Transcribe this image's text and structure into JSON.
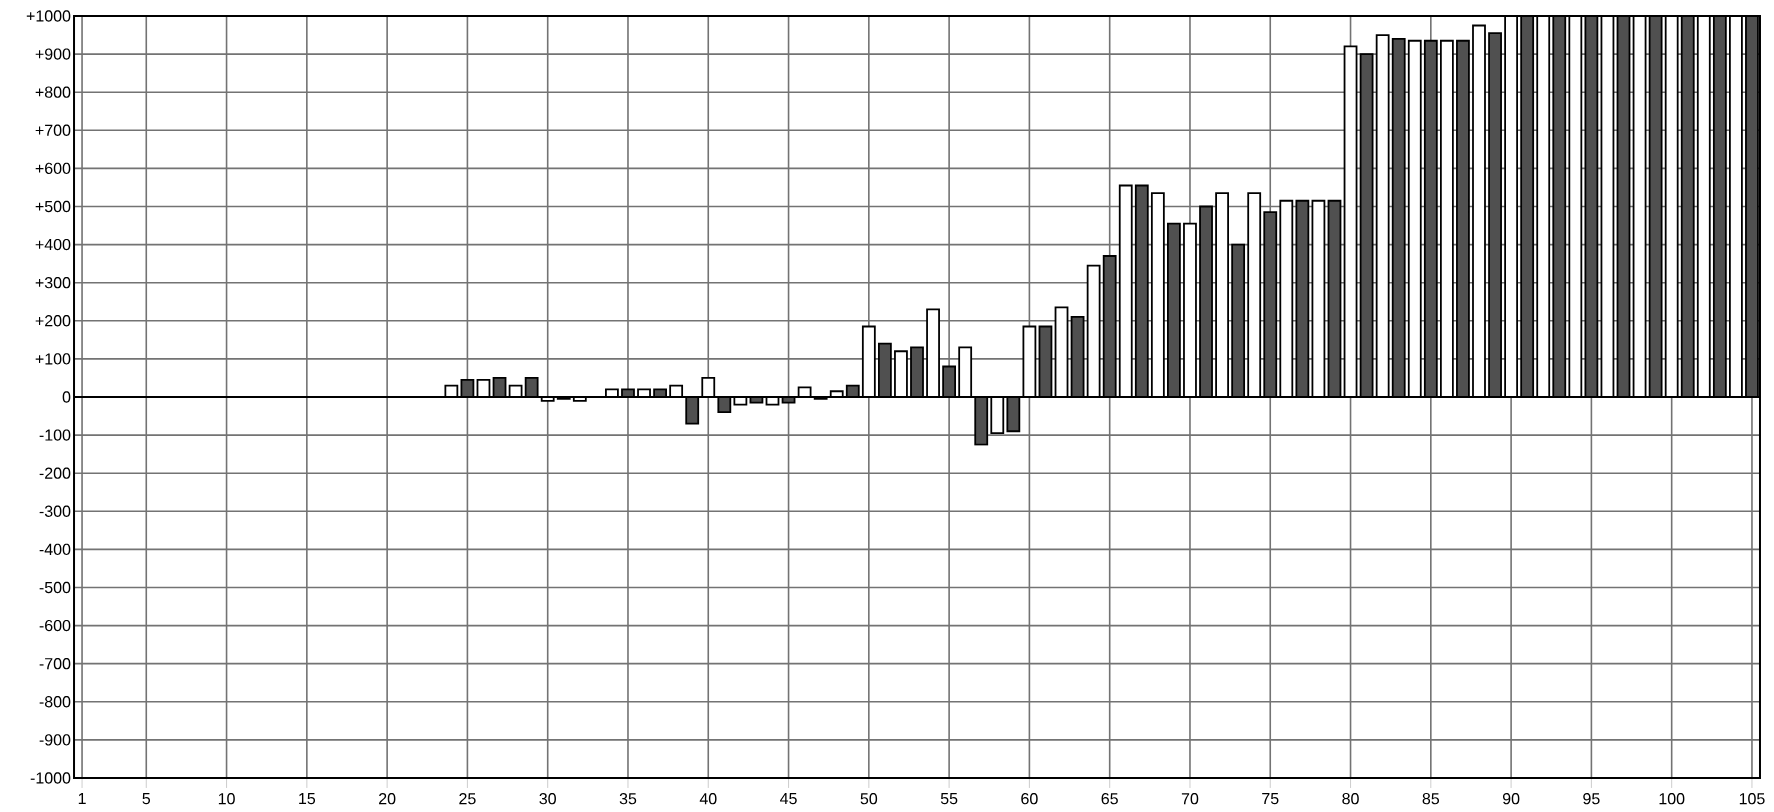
{
  "chart_data": {
    "type": "bar",
    "grid": true,
    "xlim": [
      0.5,
      105.5
    ],
    "xticks": [
      1,
      5,
      10,
      15,
      20,
      25,
      30,
      35,
      40,
      45,
      50,
      55,
      60,
      65,
      70,
      75,
      80,
      85,
      90,
      95,
      100,
      105
    ],
    "ylim": [
      -1000,
      1000
    ],
    "yticks": [
      {
        "value": -1000,
        "label": "-1000"
      },
      {
        "value": -900,
        "label": "-900"
      },
      {
        "value": -800,
        "label": "-800"
      },
      {
        "value": -700,
        "label": "-700"
      },
      {
        "value": -600,
        "label": "-600"
      },
      {
        "value": -500,
        "label": "-500"
      },
      {
        "value": -400,
        "label": "-400"
      },
      {
        "value": -300,
        "label": "-300"
      },
      {
        "value": -200,
        "label": "-200"
      },
      {
        "value": -100,
        "label": "-100"
      },
      0,
      {
        "value": 100,
        "label": "+100"
      },
      {
        "value": 200,
        "label": "+200"
      },
      {
        "value": 300,
        "label": "+300"
      },
      {
        "value": 400,
        "label": "+400"
      },
      {
        "value": 500,
        "label": "+500"
      },
      {
        "value": 600,
        "label": "+600"
      },
      {
        "value": 700,
        "label": "+700"
      },
      {
        "value": 800,
        "label": "+800"
      },
      {
        "value": 900,
        "label": "+900"
      },
      {
        "value": 1000,
        "label": "+1000"
      }
    ],
    "series": [
      {
        "color": "#ffffff",
        "x": [
          24,
          26,
          28,
          30,
          32,
          34,
          36,
          38,
          40,
          42,
          44,
          46,
          48,
          50,
          52,
          54,
          56,
          58,
          60,
          62,
          64,
          66,
          68,
          70,
          72,
          74,
          76,
          78,
          80,
          82,
          84,
          86,
          88,
          90,
          92,
          94,
          96,
          98,
          100,
          102,
          104
        ],
        "values": [
          30,
          45,
          30,
          -10,
          -10,
          20,
          20,
          30,
          50,
          -20,
          -20,
          25,
          15,
          185,
          120,
          230,
          130,
          -95,
          185,
          235,
          345,
          555,
          535,
          455,
          535,
          535,
          515,
          515,
          920,
          950,
          935,
          935,
          975,
          1000,
          1000,
          1000,
          1000,
          1000,
          1000,
          1000,
          1000
        ]
      },
      {
        "color": "#505050",
        "x": [
          25,
          27,
          29,
          31,
          33,
          35,
          37,
          39,
          41,
          43,
          45,
          47,
          49,
          51,
          53,
          55,
          57,
          59,
          61,
          63,
          65,
          67,
          69,
          71,
          73,
          75,
          77,
          79,
          81,
          83,
          85,
          87,
          89,
          91,
          93,
          95,
          97,
          99,
          101,
          103,
          105
        ],
        "values": [
          45,
          50,
          50,
          -5,
          null,
          20,
          20,
          -70,
          -40,
          -15,
          -15,
          -5,
          30,
          140,
          130,
          80,
          -125,
          -90,
          185,
          210,
          370,
          555,
          455,
          500,
          400,
          485,
          515,
          515,
          900,
          940,
          935,
          935,
          955,
          1000,
          1000,
          1000,
          1000,
          1000,
          1000,
          1000,
          1000
        ]
      }
    ]
  }
}
